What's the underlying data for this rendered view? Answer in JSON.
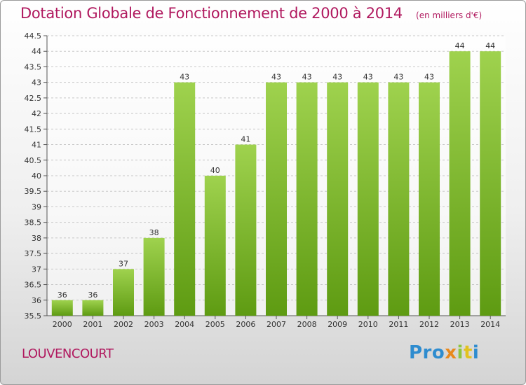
{
  "header": {
    "title": "Dotation Globale de Fonctionnement de 2000 à 2014",
    "subtitle": "(en milliers d'€)"
  },
  "footer": {
    "commune": "LOUVENCOURT",
    "logo": {
      "p1": "Pro",
      "p2": "x",
      "p3": "i",
      "p4": "t",
      "p5": "i"
    }
  },
  "colors": {
    "bar_top": "#9fd24e",
    "bar_bottom": "#5e9b12",
    "title": "#b0185e",
    "grid": "#c8c8c8"
  },
  "chart_data": {
    "type": "bar",
    "title": "Dotation Globale de Fonctionnement de 2000 à 2014",
    "subtitle": "(en milliers d'€)",
    "xlabel": "",
    "ylabel": "",
    "categories": [
      "2000",
      "2001",
      "2002",
      "2003",
      "2004",
      "2005",
      "2006",
      "2007",
      "2008",
      "2009",
      "2010",
      "2011",
      "2012",
      "2013",
      "2014"
    ],
    "values": [
      36,
      36,
      37,
      38,
      43,
      40,
      41,
      43,
      43,
      43,
      43,
      43,
      43,
      44,
      44
    ],
    "value_labels": [
      "36",
      "36",
      "37",
      "38",
      "43",
      "40",
      "41",
      "43",
      "43",
      "43",
      "43",
      "43",
      "43",
      "44",
      "44"
    ],
    "ylim": [
      35.5,
      44.5
    ],
    "yticks": [
      "35.5",
      "36",
      "36.5",
      "37",
      "37.5",
      "38",
      "38.5",
      "39",
      "39.5",
      "40",
      "40.5",
      "41",
      "41.5",
      "42",
      "42.5",
      "43",
      "43.5",
      "44",
      "44.5"
    ],
    "grid": true,
    "legend": "none"
  }
}
